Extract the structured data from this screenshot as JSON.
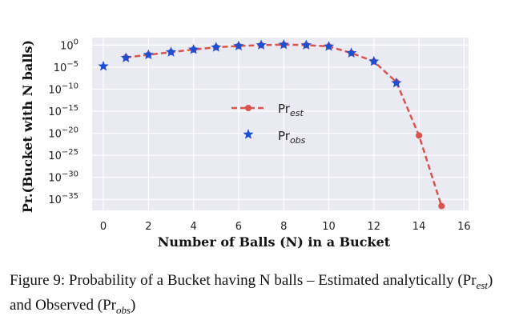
{
  "chart_data": {
    "type": "line",
    "xlabel": "Number of Balls (N) in a Bucket",
    "ylabel": "Pr.(Bucket with N balls)",
    "xlim": [
      -0.5,
      16.2
    ],
    "ylim": [
      -37.5,
      1.7
    ],
    "y_scale": "log",
    "x_ticks": [
      0,
      2,
      4,
      6,
      8,
      10,
      12,
      14,
      16
    ],
    "y_ticks": [
      {
        "base": "10",
        "exp": "0",
        "value": 0
      },
      {
        "base": "10",
        "exp": "−5",
        "value": -5
      },
      {
        "base": "10",
        "exp": "−10",
        "value": -10
      },
      {
        "base": "10",
        "exp": "−15",
        "value": -15
      },
      {
        "base": "10",
        "exp": "−20",
        "value": -20
      },
      {
        "base": "10",
        "exp": "−25",
        "value": -25
      },
      {
        "base": "10",
        "exp": "−30",
        "value": -30
      },
      {
        "base": "10",
        "exp": "−35",
        "value": -35
      }
    ],
    "grid": true,
    "legend_position": "center",
    "series": [
      {
        "name_main": "Pr",
        "name_sub": "est",
        "style": "dashed-line-circle",
        "color": "#d9534f",
        "x": [
          1,
          2,
          3,
          4,
          5,
          6,
          7,
          8,
          9,
          10,
          11,
          12,
          13,
          14,
          15
        ],
        "log10_y": [
          -2.8,
          -2.2,
          -1.6,
          -1.0,
          -0.5,
          -0.2,
          0.0,
          0.1,
          0.0,
          -0.3,
          -1.8,
          -3.7,
          -8.4,
          -20.5,
          -36.5
        ]
      },
      {
        "name_main": "Pr",
        "name_sub": "obs",
        "style": "star-marker",
        "color": "#1a4fd6",
        "x": [
          0,
          1,
          2,
          3,
          4,
          5,
          6,
          7,
          8,
          9,
          10,
          11,
          12,
          13
        ],
        "log10_y": [
          -4.8,
          -2.9,
          -2.2,
          -1.6,
          -1.0,
          -0.5,
          -0.2,
          0.0,
          0.1,
          0.0,
          -0.3,
          -1.8,
          -3.7,
          -8.6
        ]
      }
    ]
  },
  "caption": {
    "text_1": "Figure 9: Probability of a Bucket having N balls – Estimated analytically (Pr",
    "sub_1": "est",
    "text_2": ") and Observed (Pr",
    "sub_2": "obs",
    "text_3": ")"
  }
}
